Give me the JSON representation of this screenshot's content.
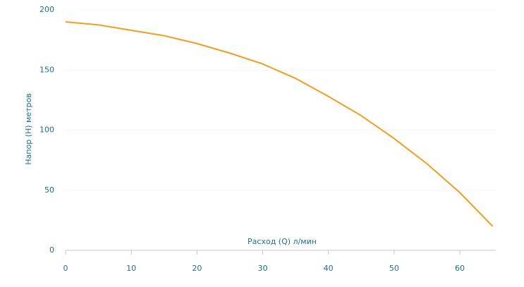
{
  "chart_data": {
    "type": "line",
    "x_label": "Расход (Q) л/мин",
    "y_label": "Напор (H) метров",
    "x": [
      0,
      5,
      10,
      15,
      20,
      25,
      30,
      35,
      40,
      45,
      50,
      55,
      60,
      65
    ],
    "series": [
      {
        "color": "#f39c1f",
        "values": [
          190,
          187.5,
          183,
          178.5,
          172,
          164,
          155,
          143,
          128,
          112,
          93,
          72,
          48,
          20
        ]
      }
    ],
    "xlim": [
      0,
      65
    ],
    "xticks": [
      0,
      10,
      20,
      30,
      40,
      50,
      60
    ],
    "ylim": [
      0,
      200
    ],
    "yticks": [
      0,
      50,
      100,
      150,
      200
    ],
    "grid": true
  }
}
